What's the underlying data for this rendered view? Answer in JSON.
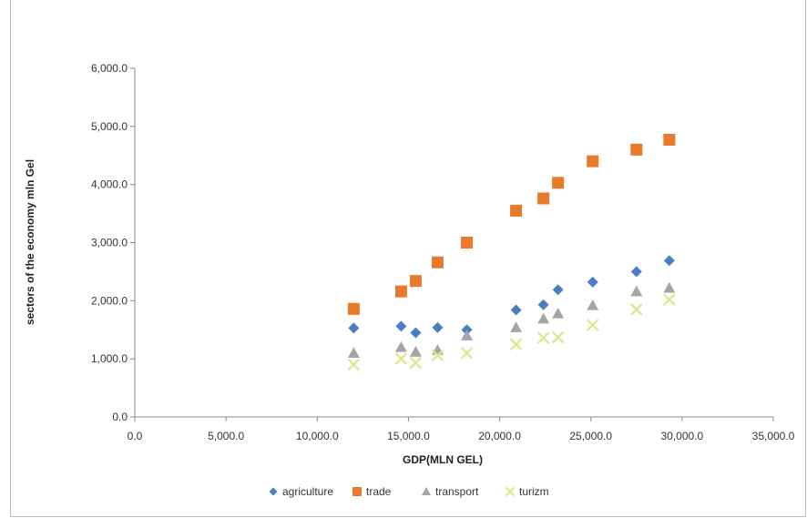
{
  "chart_data": {
    "type": "scatter",
    "xlabel": "GDP(MLN GEL)",
    "ylabel": "sectors of the economy mln Gel",
    "xlim": [
      0,
      35000
    ],
    "ylim": [
      0,
      6000
    ],
    "x_ticks": [
      "0.0",
      "5,000.0",
      "10,000.0",
      "15,000.0",
      "20,000.0",
      "25,000.0",
      "30,000.0",
      "35,000.0"
    ],
    "y_ticks": [
      "0.0",
      "1,000.0",
      "2,000.0",
      "3,000.0",
      "4,000.0",
      "5,000.0",
      "6,000.0"
    ],
    "x_tick_values": [
      0,
      5000,
      10000,
      15000,
      20000,
      25000,
      30000,
      35000
    ],
    "y_tick_values": [
      0,
      1000,
      2000,
      3000,
      4000,
      5000,
      6000
    ],
    "grid": false,
    "legend_position": "bottom",
    "x": [
      12000,
      14600,
      15400,
      16600,
      18200,
      20900,
      22400,
      23200,
      25100,
      27500,
      29300
    ],
    "series": [
      {
        "name": "agriculture",
        "marker": "diamond",
        "color": "#4a7ec2",
        "values": [
          1530,
          1560,
          1450,
          1540,
          1500,
          1840,
          1930,
          2190,
          2320,
          2500,
          2690
        ]
      },
      {
        "name": "trade",
        "marker": "square",
        "color": "#e87a2c",
        "values": [
          1860,
          2160,
          2340,
          2660,
          3000,
          3550,
          3760,
          4030,
          4400,
          4600,
          4770
        ]
      },
      {
        "name": "transport",
        "marker": "triangle",
        "color": "#a5a5a5",
        "values": [
          1100,
          1200,
          1120,
          1150,
          1400,
          1540,
          1690,
          1780,
          1920,
          2160,
          2220
        ]
      },
      {
        "name": "turizm",
        "marker": "x",
        "color": "#e0e48a",
        "values": [
          900,
          1000,
          930,
          1060,
          1100,
          1250,
          1360,
          1370,
          1580,
          1850,
          2020
        ]
      }
    ]
  }
}
